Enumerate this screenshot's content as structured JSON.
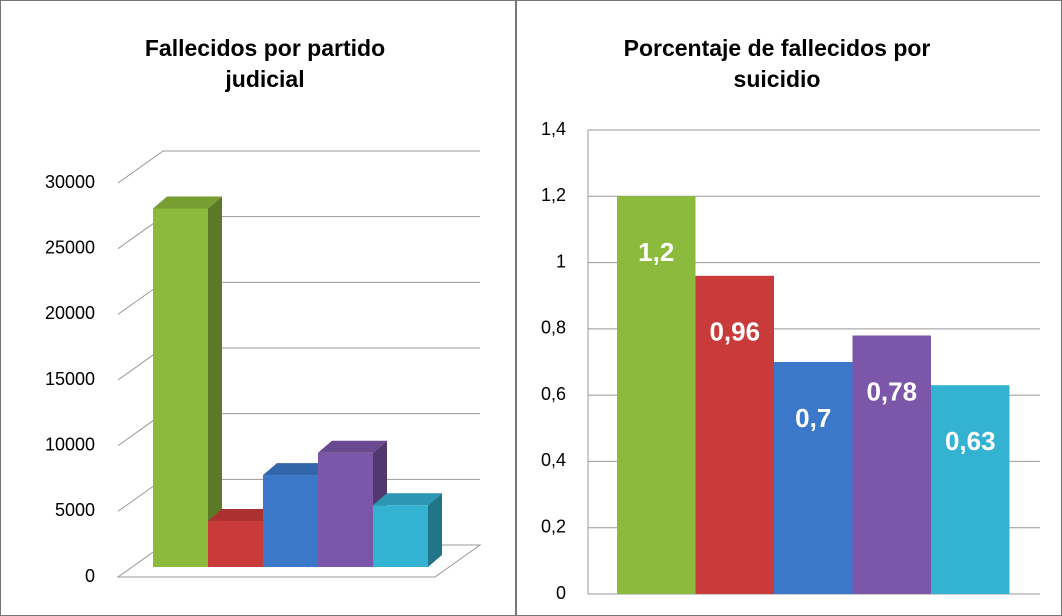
{
  "chart_data": [
    {
      "type": "bar3d",
      "title": [
        "Fallecidos por partido",
        "judicial"
      ],
      "values": [
        27300,
        3500,
        7000,
        8700,
        4700
      ],
      "colors": [
        "#8cba3c",
        "#c93a3a",
        "#3b78c9",
        "#7c56a8",
        "#34b2d2"
      ],
      "ylim": [
        0,
        30000
      ],
      "yticks": [
        0,
        5000,
        10000,
        15000,
        20000,
        25000,
        30000
      ],
      "grid": true
    },
    {
      "type": "bar",
      "title": [
        "Porcentaje de fallecidos por",
        "suicidio"
      ],
      "values": [
        1.2,
        0.96,
        0.7,
        0.78,
        0.63
      ],
      "value_labels": [
        "1,2",
        "0,96",
        "0,7",
        "0,78",
        "0,63"
      ],
      "colors": [
        "#8cba3c",
        "#c93a3a",
        "#3b78c9",
        "#7c56a8",
        "#34b2d2"
      ],
      "ylim": [
        0,
        1.4
      ],
      "yticks": [
        0,
        {
          "value": 0.2,
          "label": "0,2"
        },
        {
          "value": 0.4,
          "label": "0,4"
        },
        {
          "value": 0.6,
          "label": "0,6"
        },
        {
          "value": 0.8,
          "label": "0,8"
        },
        1,
        {
          "value": 1.2,
          "label": "1,2"
        },
        {
          "value": 1.4,
          "label": "1,4"
        }
      ],
      "grid": true
    }
  ]
}
